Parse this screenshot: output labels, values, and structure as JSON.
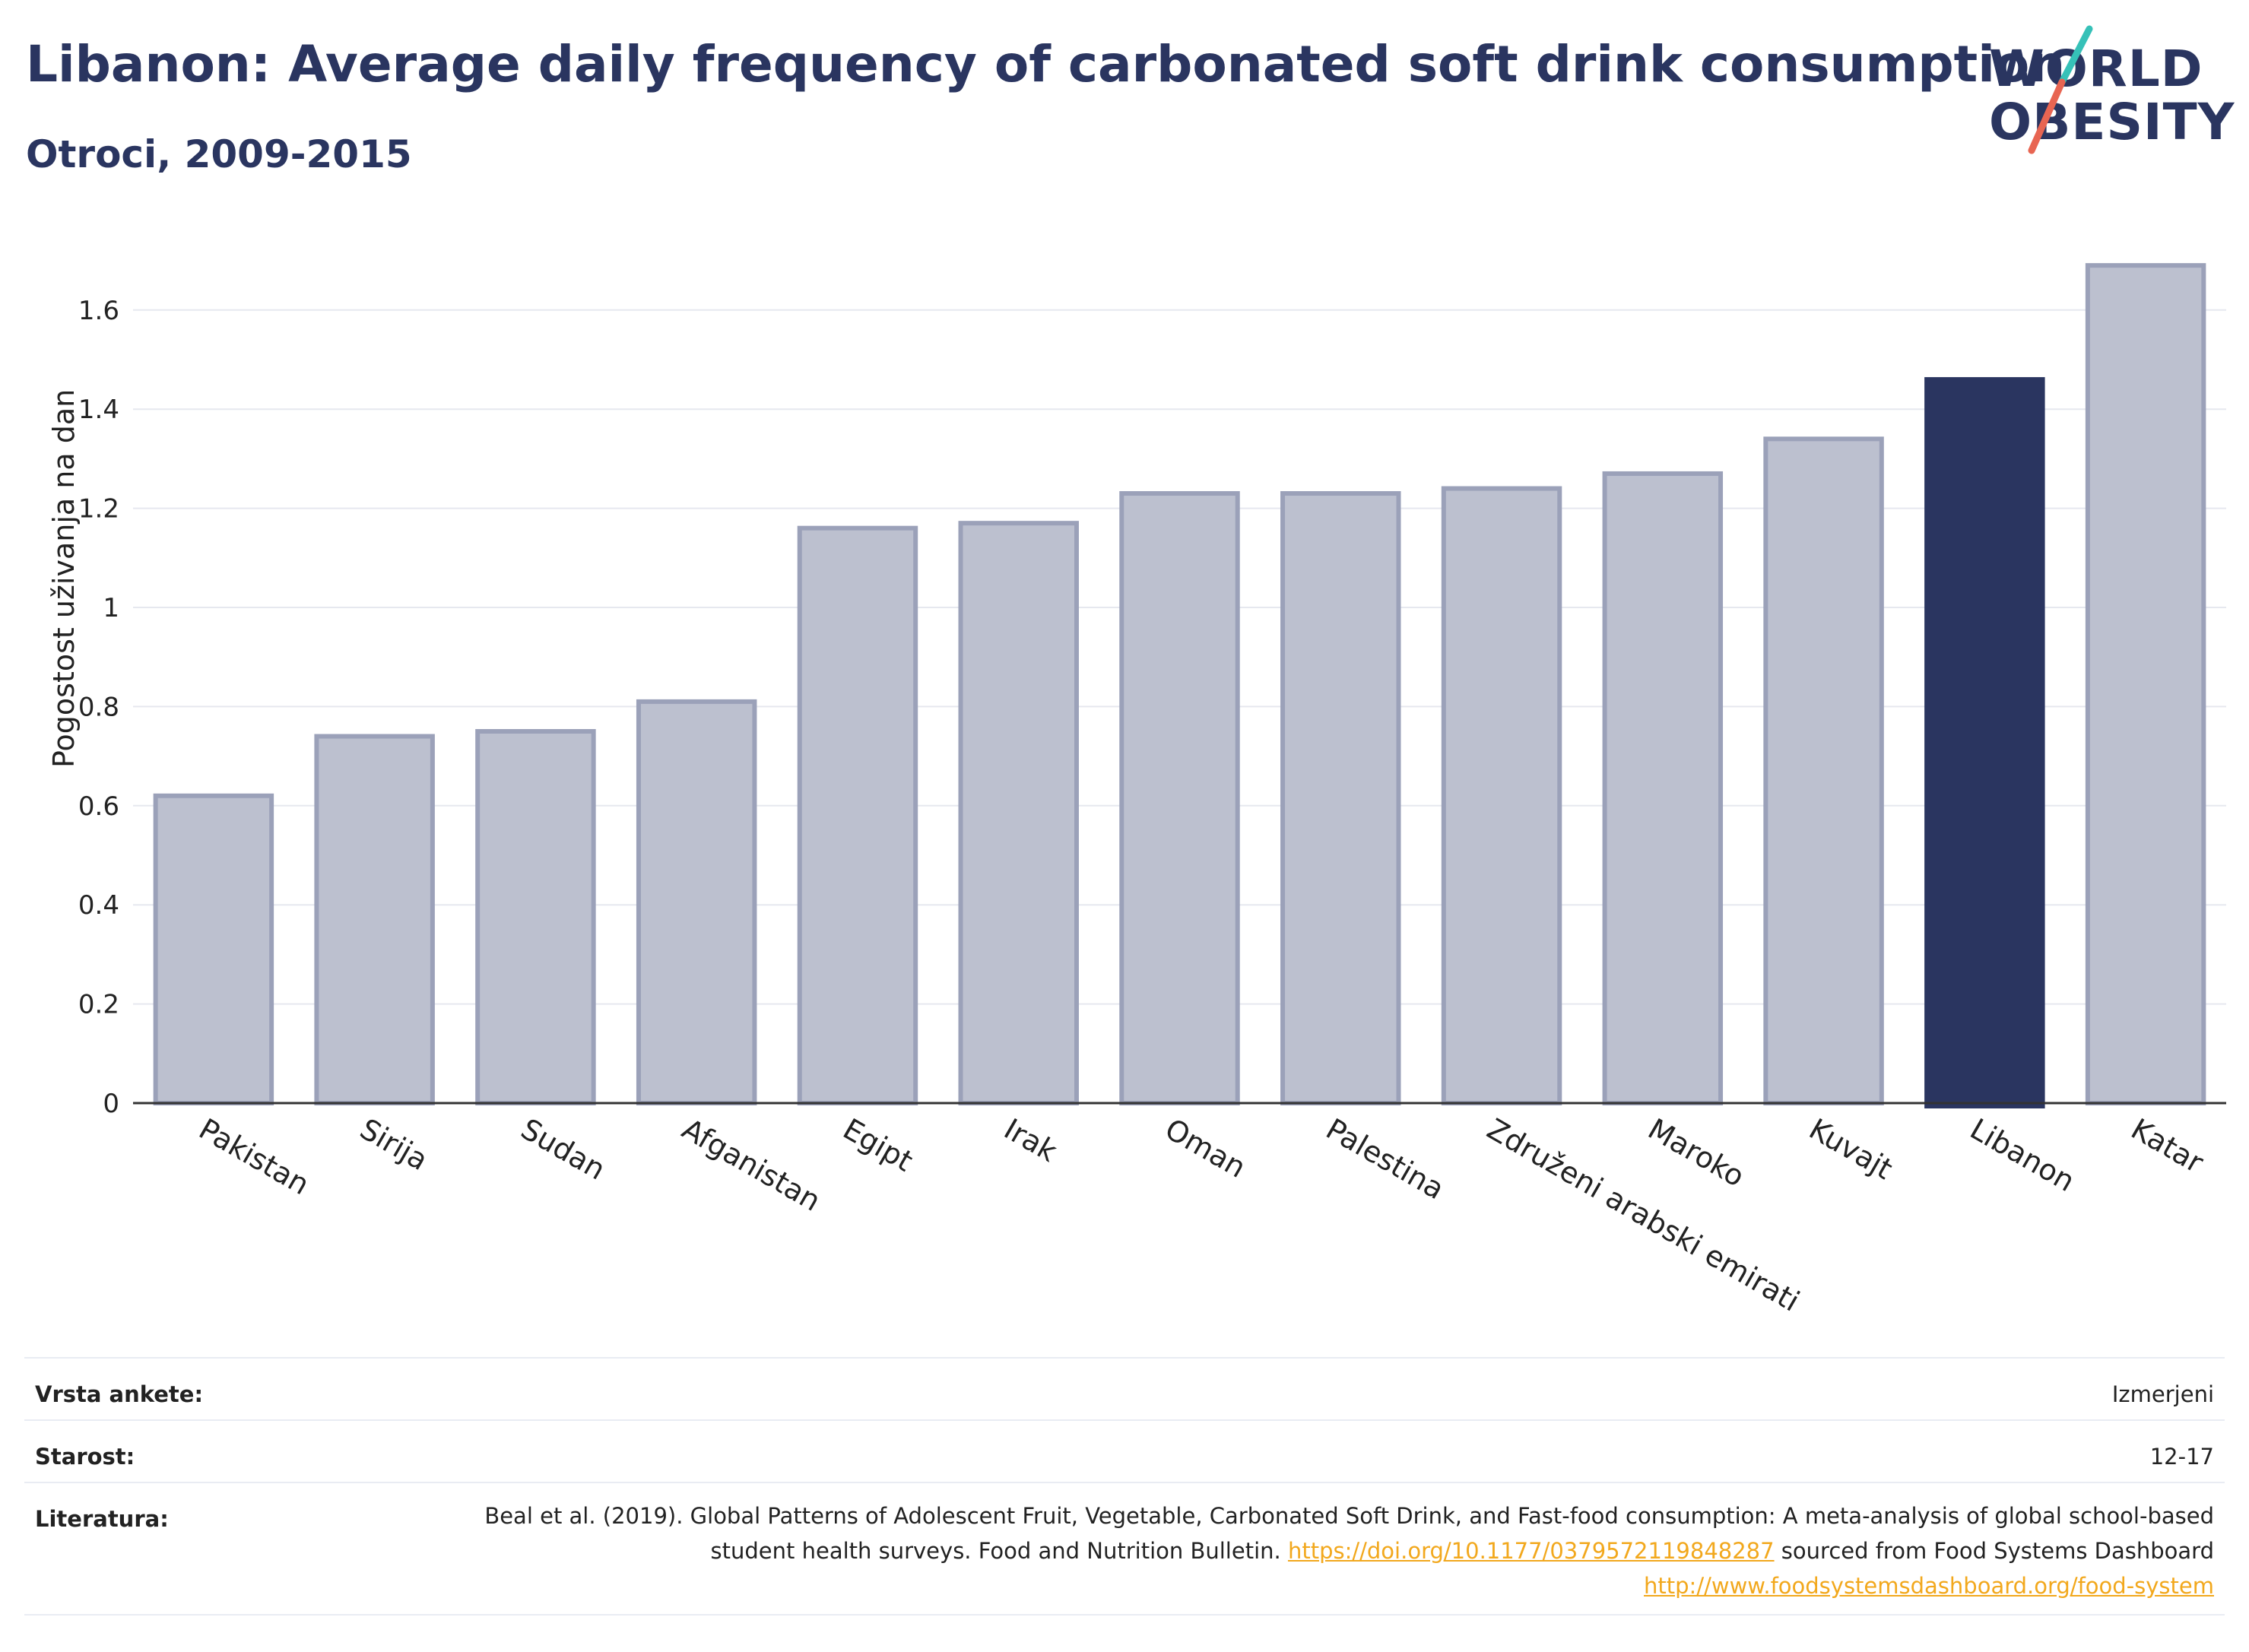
{
  "header": {
    "title": "Libanon: Average daily frequency of carbonated soft drink consumption",
    "subtitle": "Otroci, 2009-2015"
  },
  "logo": {
    "line1": "WORLD",
    "line2": "OBESITY"
  },
  "colors": {
    "highlight": "#2a3560",
    "bar_fill": "#bcc0cf",
    "bar_stroke": "#9ba1b9",
    "slash_teal": "#36c1b8",
    "slash_red": "#e86552",
    "link": "#f2a81d"
  },
  "chart_data": {
    "type": "bar",
    "title": "Libanon: Average daily frequency of carbonated soft drink consumption",
    "subtitle": "Otroci, 2009-2015",
    "xlabel": "",
    "ylabel": "Pogostost uživanja na dan",
    "ylim": [
      0,
      1.75
    ],
    "yticks": [
      0,
      0.2,
      0.4,
      0.6,
      0.8,
      1,
      1.2,
      1.4,
      1.6
    ],
    "ytick_labels": [
      "0",
      "0.2",
      "0.4",
      "0.6",
      "0.8",
      "1",
      "1.2",
      "1.4",
      "1.6"
    ],
    "grid": true,
    "categories": [
      "Pakistan",
      "Sirija",
      "Sudan",
      "Afganistan",
      "Egipt",
      "Irak",
      "Oman",
      "Palestina",
      "Združeni arabski emirati",
      "Maroko",
      "Kuvajt",
      "Libanon",
      "Katar"
    ],
    "values": [
      0.62,
      0.74,
      0.75,
      0.81,
      1.16,
      1.17,
      1.23,
      1.23,
      1.24,
      1.27,
      1.34,
      1.46,
      1.69
    ],
    "highlight": "Libanon"
  },
  "meta": {
    "survey_label": "Vrsta ankete:",
    "survey_value": "Izmerjeni",
    "age_label": "Starost:",
    "age_value": "12-17",
    "ref_label": "Literatura:",
    "ref_text_1": "Beal et al. (2019). Global Patterns of Adolescent Fruit, Vegetable, Carbonated Soft Drink, and Fast-food consumption: A meta-analysis of global school-based student health surveys. Food and Nutrition Bulletin.",
    "ref_link_1": "https://doi.org/10.1177/0379572119848287",
    "ref_text_2": "sourced from Food Systems Dashboard",
    "ref_link_2": "http://www.foodsystemsdashboard.org/food-system"
  }
}
